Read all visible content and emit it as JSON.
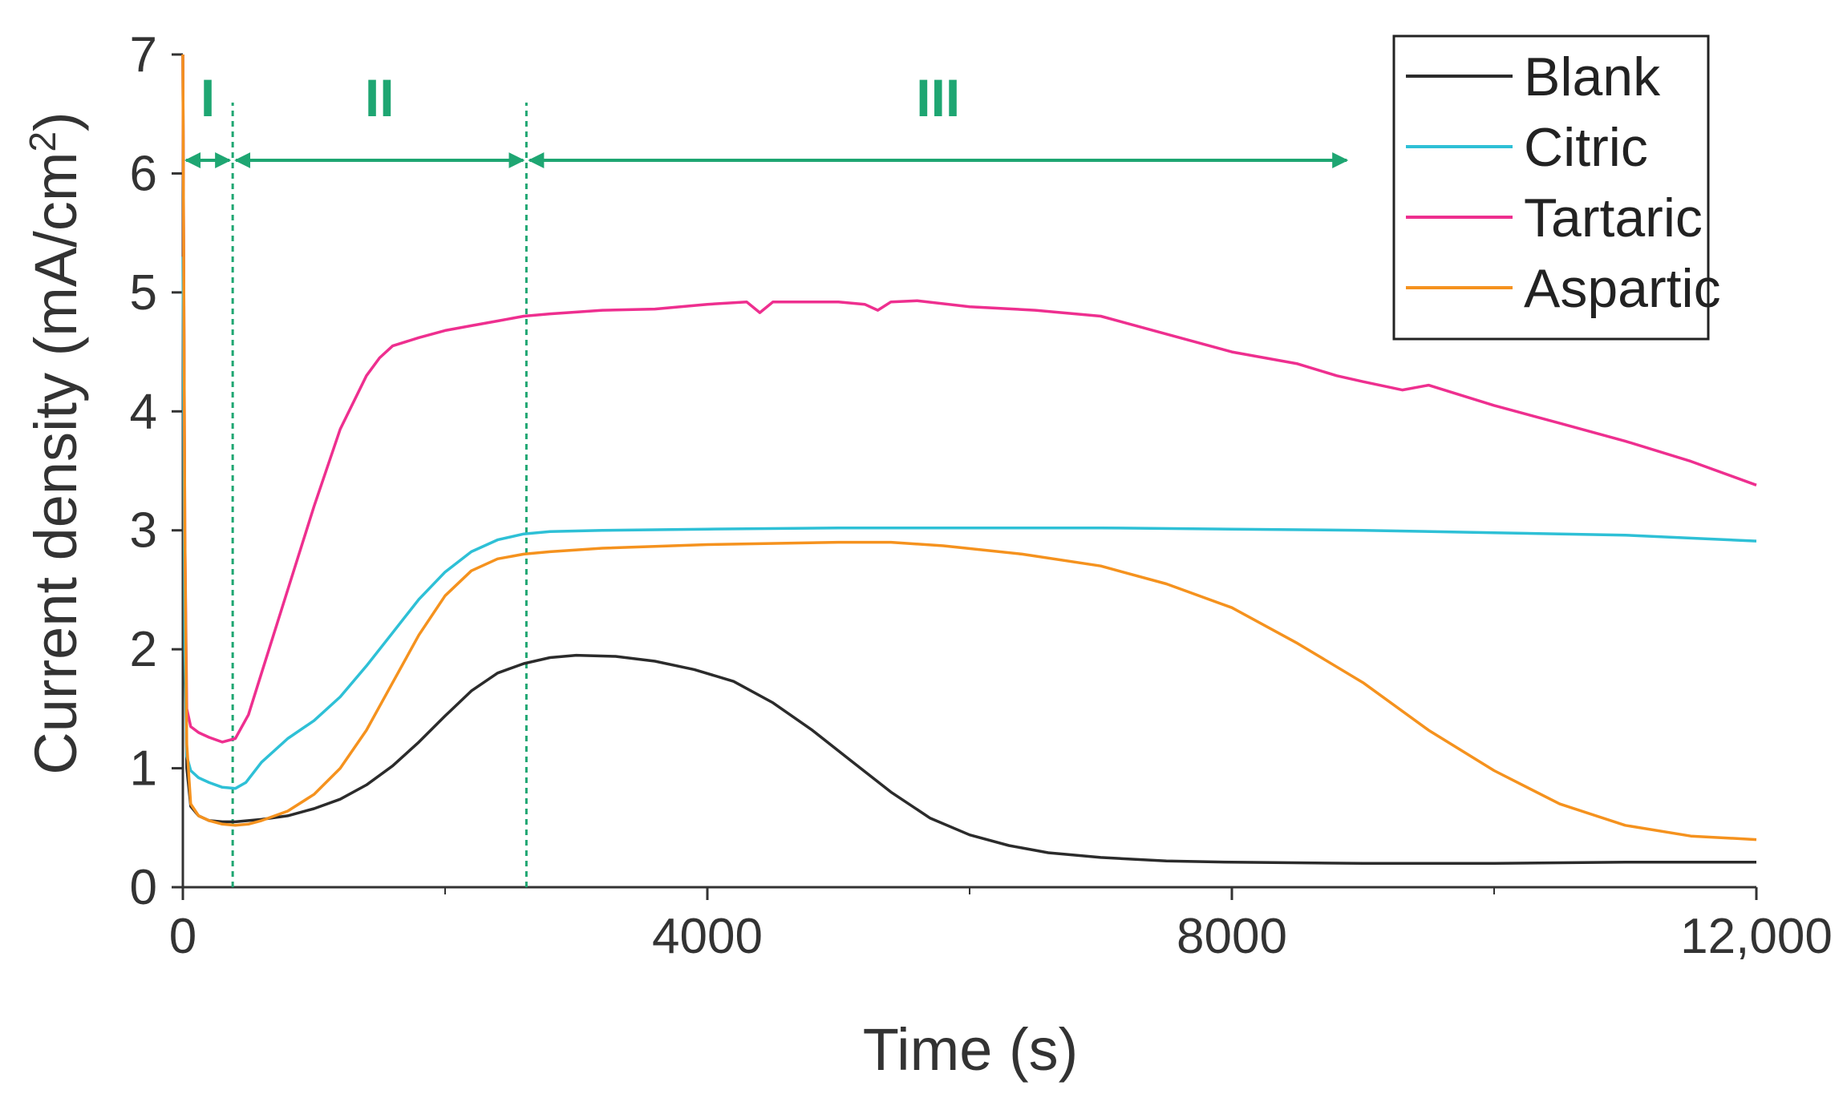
{
  "chart_data": {
    "type": "line",
    "title": "",
    "xlabel": "Time (s)",
    "ylabel_main": "Current density (mA/cm",
    "ylabel_sup": "2",
    "ylabel_close": ")",
    "xlim": [
      0,
      12000
    ],
    "ylim": [
      0,
      7
    ],
    "x_ticks": [
      0,
      4000,
      8000,
      12000
    ],
    "x_tick_labels": [
      "0",
      "4000",
      "8000",
      "12,000"
    ],
    "x_minor_ticks": [
      2000,
      6000,
      10000
    ],
    "y_ticks": [
      0,
      1,
      2,
      3,
      4,
      5,
      6,
      7
    ],
    "y_tick_labels": [
      "0",
      "1",
      "2",
      "3",
      "4",
      "5",
      "6",
      "7"
    ],
    "grid": false,
    "legend_position": "top-right",
    "series": [
      {
        "name": "Blank",
        "color": "#2b2b2b",
        "points": [
          [
            0,
            7.0
          ],
          [
            15,
            2.5
          ],
          [
            30,
            1.0
          ],
          [
            60,
            0.68
          ],
          [
            120,
            0.6
          ],
          [
            200,
            0.56
          ],
          [
            300,
            0.55
          ],
          [
            400,
            0.55
          ],
          [
            600,
            0.57
          ],
          [
            800,
            0.6
          ],
          [
            1000,
            0.66
          ],
          [
            1200,
            0.74
          ],
          [
            1400,
            0.86
          ],
          [
            1600,
            1.02
          ],
          [
            1800,
            1.22
          ],
          [
            2000,
            1.44
          ],
          [
            2200,
            1.65
          ],
          [
            2400,
            1.8
          ],
          [
            2600,
            1.88
          ],
          [
            2800,
            1.93
          ],
          [
            3000,
            1.95
          ],
          [
            3300,
            1.94
          ],
          [
            3600,
            1.9
          ],
          [
            3900,
            1.83
          ],
          [
            4200,
            1.73
          ],
          [
            4500,
            1.55
          ],
          [
            4800,
            1.32
          ],
          [
            5100,
            1.06
          ],
          [
            5400,
            0.8
          ],
          [
            5700,
            0.58
          ],
          [
            6000,
            0.44
          ],
          [
            6300,
            0.35
          ],
          [
            6600,
            0.29
          ],
          [
            7000,
            0.25
          ],
          [
            7500,
            0.22
          ],
          [
            8000,
            0.21
          ],
          [
            9000,
            0.2
          ],
          [
            10000,
            0.2
          ],
          [
            11000,
            0.21
          ],
          [
            12000,
            0.21
          ]
        ]
      },
      {
        "name": "Citric",
        "color": "#2ec0d6",
        "points": [
          [
            0,
            5.3
          ],
          [
            15,
            2.0
          ],
          [
            30,
            1.1
          ],
          [
            60,
            0.98
          ],
          [
            120,
            0.92
          ],
          [
            200,
            0.88
          ],
          [
            300,
            0.84
          ],
          [
            400,
            0.83
          ],
          [
            480,
            0.88
          ],
          [
            600,
            1.05
          ],
          [
            800,
            1.25
          ],
          [
            1000,
            1.4
          ],
          [
            1200,
            1.6
          ],
          [
            1400,
            1.86
          ],
          [
            1600,
            2.14
          ],
          [
            1800,
            2.42
          ],
          [
            2000,
            2.65
          ],
          [
            2200,
            2.82
          ],
          [
            2400,
            2.92
          ],
          [
            2600,
            2.97
          ],
          [
            2800,
            2.99
          ],
          [
            3200,
            3.0
          ],
          [
            4000,
            3.01
          ],
          [
            5000,
            3.02
          ],
          [
            6000,
            3.02
          ],
          [
            7000,
            3.02
          ],
          [
            8000,
            3.01
          ],
          [
            9000,
            3.0
          ],
          [
            10000,
            2.98
          ],
          [
            11000,
            2.96
          ],
          [
            12000,
            2.91
          ]
        ]
      },
      {
        "name": "Tartaric",
        "color": "#ee2f8f",
        "points": [
          [
            0,
            7.0
          ],
          [
            15,
            3.0
          ],
          [
            30,
            1.5
          ],
          [
            60,
            1.35
          ],
          [
            120,
            1.3
          ],
          [
            200,
            1.26
          ],
          [
            300,
            1.22
          ],
          [
            400,
            1.25
          ],
          [
            500,
            1.45
          ],
          [
            600,
            1.8
          ],
          [
            800,
            2.5
          ],
          [
            1000,
            3.2
          ],
          [
            1200,
            3.85
          ],
          [
            1400,
            4.3
          ],
          [
            1500,
            4.45
          ],
          [
            1600,
            4.55
          ],
          [
            1800,
            4.62
          ],
          [
            2000,
            4.68
          ],
          [
            2200,
            4.72
          ],
          [
            2400,
            4.76
          ],
          [
            2600,
            4.8
          ],
          [
            2800,
            4.82
          ],
          [
            3200,
            4.85
          ],
          [
            3600,
            4.86
          ],
          [
            4000,
            4.9
          ],
          [
            4300,
            4.92
          ],
          [
            4400,
            4.83
          ],
          [
            4500,
            4.92
          ],
          [
            5000,
            4.92
          ],
          [
            5200,
            4.9
          ],
          [
            5300,
            4.85
          ],
          [
            5400,
            4.92
          ],
          [
            5600,
            4.93
          ],
          [
            6000,
            4.88
          ],
          [
            6500,
            4.85
          ],
          [
            7000,
            4.8
          ],
          [
            7500,
            4.65
          ],
          [
            8000,
            4.5
          ],
          [
            8500,
            4.4
          ],
          [
            8800,
            4.3
          ],
          [
            9000,
            4.25
          ],
          [
            9300,
            4.18
          ],
          [
            9500,
            4.22
          ],
          [
            10000,
            4.05
          ],
          [
            10500,
            3.9
          ],
          [
            11000,
            3.75
          ],
          [
            11500,
            3.58
          ],
          [
            12000,
            3.38
          ]
        ]
      },
      {
        "name": "Aspartic",
        "color": "#f5921e",
        "points": [
          [
            0,
            7.0
          ],
          [
            15,
            3.0
          ],
          [
            30,
            1.2
          ],
          [
            60,
            0.7
          ],
          [
            120,
            0.6
          ],
          [
            200,
            0.56
          ],
          [
            300,
            0.53
          ],
          [
            400,
            0.52
          ],
          [
            500,
            0.53
          ],
          [
            600,
            0.56
          ],
          [
            800,
            0.64
          ],
          [
            1000,
            0.78
          ],
          [
            1200,
            1.0
          ],
          [
            1400,
            1.32
          ],
          [
            1600,
            1.72
          ],
          [
            1800,
            2.12
          ],
          [
            2000,
            2.45
          ],
          [
            2200,
            2.66
          ],
          [
            2400,
            2.76
          ],
          [
            2600,
            2.8
          ],
          [
            2800,
            2.82
          ],
          [
            3200,
            2.85
          ],
          [
            4000,
            2.88
          ],
          [
            5000,
            2.9
          ],
          [
            5400,
            2.9
          ],
          [
            5800,
            2.87
          ],
          [
            6400,
            2.8
          ],
          [
            7000,
            2.7
          ],
          [
            7500,
            2.55
          ],
          [
            8000,
            2.35
          ],
          [
            8500,
            2.05
          ],
          [
            9000,
            1.72
          ],
          [
            9500,
            1.32
          ],
          [
            10000,
            0.98
          ],
          [
            10500,
            0.7
          ],
          [
            11000,
            0.52
          ],
          [
            11500,
            0.43
          ],
          [
            12000,
            0.4
          ]
        ]
      }
    ],
    "regions": [
      {
        "label": "I",
        "x_start": 0,
        "x_end": 380
      },
      {
        "label": "II",
        "x_start": 380,
        "x_end": 2620
      },
      {
        "label": "III",
        "x_start": 2620,
        "x_end": 8900
      }
    ],
    "region_color": "#1ea672",
    "divider_x": [
      380,
      2620
    ]
  }
}
